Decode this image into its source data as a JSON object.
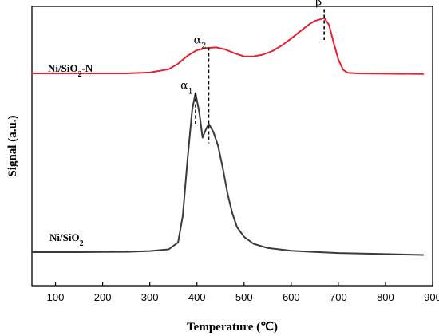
{
  "chart_data": {
    "type": "line",
    "xlabel": "Temperature (℃)",
    "ylabel": "Signal (a.u.)",
    "xlim": [
      50,
      900
    ],
    "x_ticks": [
      100,
      200,
      300,
      400,
      500,
      600,
      700,
      800,
      900
    ],
    "y_ticks_shown": false,
    "grid": false,
    "legend": "none",
    "ylim": [
      0,
      100
    ],
    "series": [
      {
        "name": "Ni/SiO2-N",
        "color": "#e8212e",
        "x": [
          50,
          150,
          250,
          300,
          340,
          360,
          380,
          400,
          420,
          440,
          460,
          480,
          500,
          520,
          540,
          560,
          580,
          600,
          620,
          640,
          650,
          660,
          670,
          680,
          690,
          700,
          710,
          720,
          740,
          800,
          880
        ],
        "y": [
          76,
          76,
          76,
          76.3,
          77.5,
          79.5,
          82.3,
          84.3,
          85.1,
          85.3,
          84.6,
          83.2,
          82.1,
          82.1,
          82.7,
          84,
          86,
          88.5,
          91.2,
          93.8,
          94.8,
          95.3,
          95.8,
          93.5,
          87,
          81,
          77.3,
          76.2,
          76,
          75.9,
          75.8
        ]
      },
      {
        "name": "Ni/SiO2",
        "color": "#3a3a3a",
        "x": [
          50,
          150,
          250,
          300,
          340,
          360,
          370,
          380,
          390,
          397,
          405,
          412,
          418,
          425,
          435,
          445,
          455,
          465,
          475,
          485,
          500,
          520,
          550,
          600,
          700,
          800,
          880
        ],
        "y": [
          12,
          12,
          12.1,
          12.4,
          13,
          15.5,
          25,
          45,
          63,
          69,
          62,
          53,
          55.5,
          58,
          55,
          50,
          42,
          33,
          26,
          21,
          17.5,
          15,
          13.5,
          12.5,
          11.7,
          11.3,
          11
        ]
      }
    ],
    "annotations": [
      {
        "text_base": "α",
        "text_sub": "1",
        "x": 397,
        "line_y": [
          58,
          69
        ]
      },
      {
        "text_base": "α",
        "text_sub": "2",
        "x": 425,
        "line_y": [
          51,
          85.3
        ]
      },
      {
        "text_base": "β",
        "text_sub": "",
        "x": 670,
        "line_y": [
          88,
          99
        ]
      }
    ],
    "series_labels": [
      {
        "base": "Ni/SiO",
        "sub": "2",
        "tail": "-N"
      },
      {
        "base": "Ni/SiO",
        "sub": "2",
        "tail": ""
      }
    ]
  }
}
